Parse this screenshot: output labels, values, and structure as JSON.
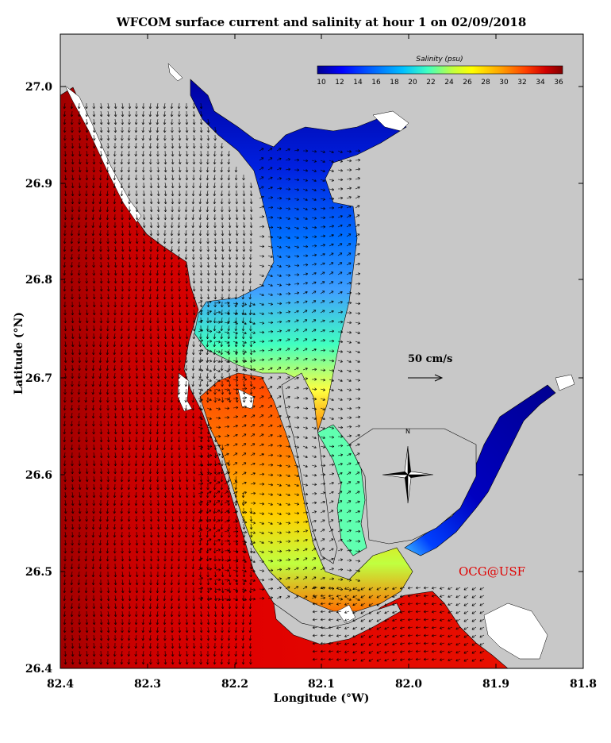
{
  "title": "WFCOM surface current and salinity at hour 1 on 02/09/2018",
  "map": {
    "x_label": "Longitude (°W)",
    "y_label": "Latitude (°N)",
    "x_ticks": [
      "82.4",
      "82.3",
      "82.2",
      "82.1",
      "82.0",
      "81.9",
      "81.8"
    ],
    "y_ticks": [
      "27.0",
      "26.9",
      "26.8",
      "26.7",
      "26.6",
      "26.5",
      "26.4"
    ],
    "lon_range": [
      82.4,
      81.8
    ],
    "lat_range": [
      26.4,
      27.06
    ],
    "land_color": "#c8c8c8",
    "water_color": "#ffffff"
  },
  "colorbar": {
    "title": "Salinity (psu)",
    "ticks": [
      "10",
      "12",
      "14",
      "16",
      "18",
      "20",
      "22",
      "24",
      "26",
      "28",
      "30",
      "32",
      "34",
      "36"
    ],
    "min": 10,
    "max": 36,
    "colors": [
      "#00008f",
      "#0000ff",
      "#0060ff",
      "#00c0ff",
      "#40ffc0",
      "#c0ff40",
      "#ffff00",
      "#ffa000",
      "#ff4000",
      "#d00000",
      "#800000"
    ]
  },
  "scale_arrow": {
    "label": "50 cm/s"
  },
  "compass": {
    "north_label": "N"
  },
  "credit": {
    "text": "OCG@USF",
    "color": "#e00000"
  }
}
